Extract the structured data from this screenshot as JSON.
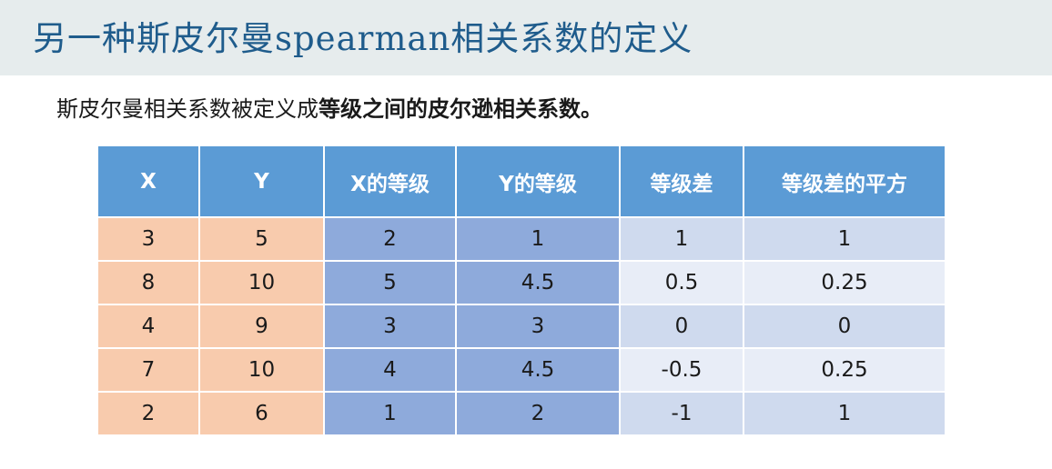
{
  "title": "另一种斯皮尔曼spearman相关系数的定义",
  "subtitle": {
    "prefix": "斯皮尔曼相关系数被定义成",
    "emphasis": "等级之间的皮尔逊相关系数。"
  },
  "table": {
    "headers": [
      "X",
      "Y",
      "X的等级",
      "Y的等级",
      "等级差",
      "等级差的平方"
    ],
    "rows": [
      [
        "3",
        "5",
        "2",
        "1",
        "1",
        "1"
      ],
      [
        "8",
        "10",
        "5",
        "4.5",
        "0.5",
        "0.25"
      ],
      [
        "4",
        "9",
        "3",
        "3",
        "0",
        "0"
      ],
      [
        "7",
        "10",
        "4",
        "4.5",
        "-0.5",
        "0.25"
      ],
      [
        "2",
        "6",
        "1",
        "2",
        "-1",
        "1"
      ]
    ]
  },
  "colors": {
    "title_bar": "#e6eced",
    "title_text": "#1f5c8c",
    "header": "#5b9bd5",
    "raw_columns": "#f8cbad",
    "rank_columns": "#8eaadb",
    "diff_columns_dark": "#cfdaee",
    "diff_columns_light": "#e8edf7"
  }
}
